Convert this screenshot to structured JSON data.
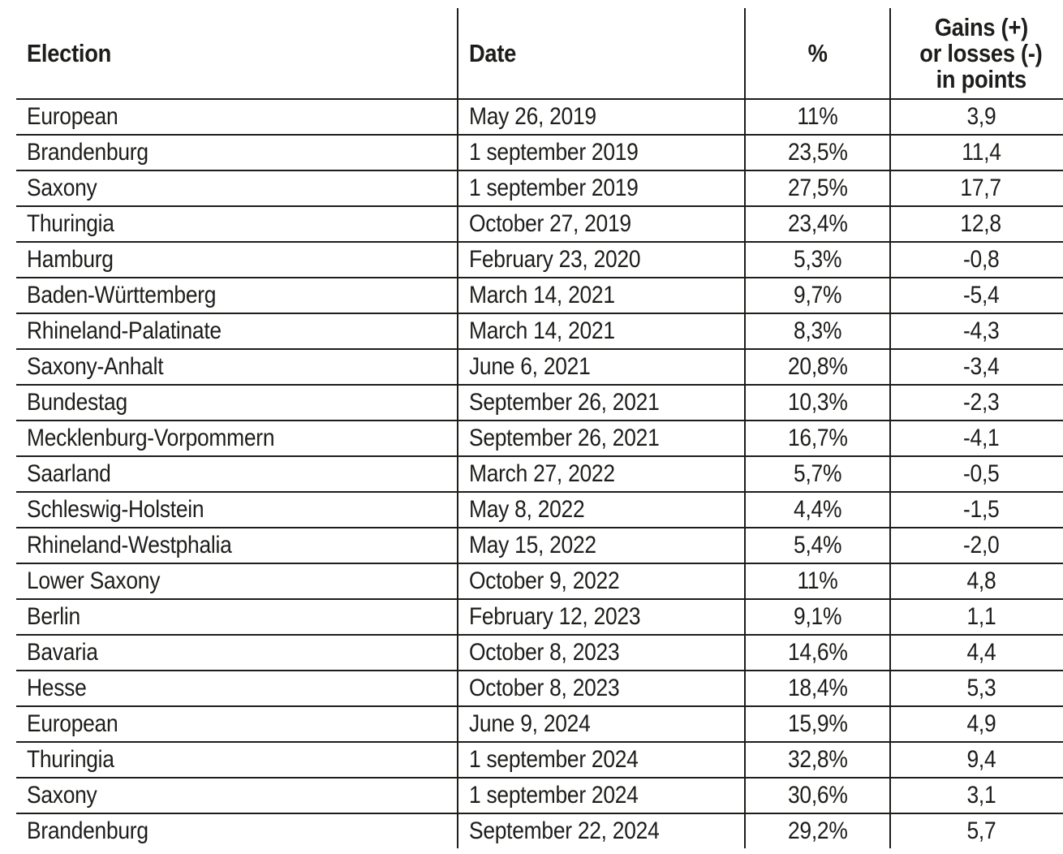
{
  "page": {
    "background_color": "#ffffff",
    "line_color": "#1d1d1b",
    "text_color": "#1d1d1b"
  },
  "table": {
    "headers": {
      "election": "Election",
      "date": "Date",
      "percent": "%",
      "gains_lines": [
        "Gains (+)",
        "or losses (-)",
        "in points"
      ]
    },
    "rows": [
      {
        "election": "European",
        "date": "May 26, 2019",
        "percent": "11%",
        "gains": "3,9"
      },
      {
        "election": "Brandenburg",
        "date": "1 september 2019",
        "percent": "23,5%",
        "gains": "11,4"
      },
      {
        "election": "Saxony",
        "date": "1 september 2019",
        "percent": "27,5%",
        "gains": "17,7"
      },
      {
        "election": "Thuringia",
        "date": "October 27, 2019",
        "percent": "23,4%",
        "gains": "12,8"
      },
      {
        "election": "Hamburg",
        "date": "February 23, 2020",
        "percent": "5,3%",
        "gains": "-0,8"
      },
      {
        "election": "Baden-Württemberg",
        "date": "March 14, 2021",
        "percent": "9,7%",
        "gains": "-5,4"
      },
      {
        "election": "Rhineland-Palatinate",
        "date": "March 14, 2021",
        "percent": "8,3%",
        "gains": "-4,3"
      },
      {
        "election": "Saxony-Anhalt",
        "date": "June 6, 2021",
        "percent": "20,8%",
        "gains": "-3,4"
      },
      {
        "election": "Bundestag",
        "date": "September 26, 2021",
        "percent": "10,3%",
        "gains": "-2,3"
      },
      {
        "election": "Mecklenburg-Vorpommern",
        "date": "September 26, 2021",
        "percent": "16,7%",
        "gains": "-4,1"
      },
      {
        "election": "Saarland",
        "date": "March 27, 2022",
        "percent": "5,7%",
        "gains": "-0,5"
      },
      {
        "election": "Schleswig-Holstein",
        "date": "May 8, 2022",
        "percent": "4,4%",
        "gains": "-1,5"
      },
      {
        "election": "Rhineland-Westphalia",
        "date": "May 15, 2022",
        "percent": "5,4%",
        "gains": "-2,0"
      },
      {
        "election": "Lower Saxony",
        "date": "October 9, 2022",
        "percent": "11%",
        "gains": "4,8"
      },
      {
        "election": "Berlin",
        "date": "February 12, 2023",
        "percent": "9,1%",
        "gains": "1,1"
      },
      {
        "election": "Bavaria",
        "date": "October 8, 2023",
        "percent": "14,6%",
        "gains": "4,4"
      },
      {
        "election": "Hesse",
        "date": "October 8, 2023",
        "percent": "18,4%",
        "gains": "5,3"
      },
      {
        "election": "European",
        "date": "June 9, 2024",
        "percent": "15,9%",
        "gains": "4,9"
      },
      {
        "election": "Thuringia",
        "date": "1 september 2024",
        "percent": "32,8%",
        "gains": "9,4"
      },
      {
        "election": "Saxony",
        "date": "1 september 2024",
        "percent": "30,6%",
        "gains": "3,1"
      },
      {
        "election": "Brandenburg",
        "date": "September 22, 2024",
        "percent": "29,2%",
        "gains": "5,7"
      }
    ]
  },
  "chart_data": {
    "type": "table",
    "title": "",
    "columns": [
      "Election",
      "Date",
      "%",
      "Gains (+) or losses (-) in points"
    ],
    "rows": [
      [
        "European",
        "May 26, 2019",
        "11%",
        "3,9"
      ],
      [
        "Brandenburg",
        "1 september 2019",
        "23,5%",
        "11,4"
      ],
      [
        "Saxony",
        "1 september 2019",
        "27,5%",
        "17,7"
      ],
      [
        "Thuringia",
        "October 27, 2019",
        "23,4%",
        "12,8"
      ],
      [
        "Hamburg",
        "February 23, 2020",
        "5,3%",
        "-0,8"
      ],
      [
        "Baden-Württemberg",
        "March 14, 2021",
        "9,7%",
        "-5,4"
      ],
      [
        "Rhineland-Palatinate",
        "March 14, 2021",
        "8,3%",
        "-4,3"
      ],
      [
        "Saxony-Anhalt",
        "June 6, 2021",
        "20,8%",
        "-3,4"
      ],
      [
        "Bundestag",
        "September 26, 2021",
        "10,3%",
        "-2,3"
      ],
      [
        "Mecklenburg-Vorpommern",
        "September 26, 2021",
        "16,7%",
        "-4,1"
      ],
      [
        "Saarland",
        "March 27, 2022",
        "5,7%",
        "-0,5"
      ],
      [
        "Schleswig-Holstein",
        "May 8, 2022",
        "4,4%",
        "-1,5"
      ],
      [
        "Rhineland-Westphalia",
        "May 15, 2022",
        "5,4%",
        "-2,0"
      ],
      [
        "Lower Saxony",
        "October 9, 2022",
        "11%",
        "4,8"
      ],
      [
        "Berlin",
        "February 12, 2023",
        "9,1%",
        "1,1"
      ],
      [
        "Bavaria",
        "October 8, 2023",
        "14,6%",
        "4,4"
      ],
      [
        "Hesse",
        "October 8, 2023",
        "18,4%",
        "5,3"
      ],
      [
        "European",
        "June 9, 2024",
        "15,9%",
        "4,9"
      ],
      [
        "Thuringia",
        "1 september 2024",
        "32,8%",
        "9,4"
      ],
      [
        "Saxony",
        "1 september 2024",
        "30,6%",
        "3,1"
      ],
      [
        "Brandenburg",
        "September 22, 2024",
        "29,2%",
        "5,7"
      ]
    ]
  }
}
